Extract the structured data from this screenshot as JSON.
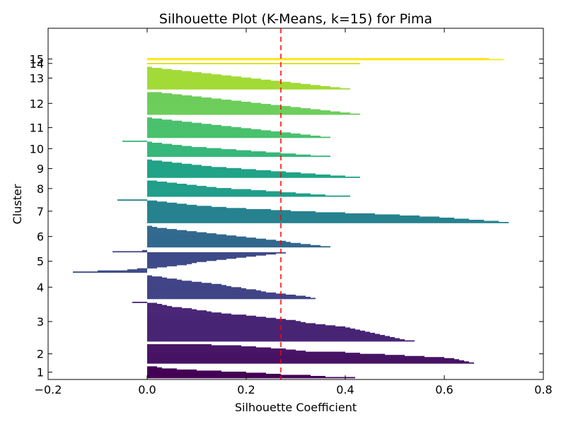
{
  "chart_data": {
    "type": "bar",
    "orientation": "horizontal",
    "title": "Silhouette Plot (K-Means, k=15) for Pima",
    "xlabel": "Silhouette Coefficient",
    "ylabel": "Cluster",
    "xlim": [
      -0.2,
      0.8
    ],
    "xticks": [
      "−0.2",
      "0.0",
      "0.2",
      "0.4",
      "0.6",
      "0.8"
    ],
    "xtick_values": [
      -0.2,
      0.0,
      0.2,
      0.4,
      0.6,
      0.8
    ],
    "average_silhouette": 0.27,
    "reference_line_color": "#ff0000",
    "colormap": "viridis",
    "grid": false,
    "clusters": [
      {
        "label": "1",
        "color": "#440154",
        "values": [
          0.42,
          0.36,
          0.33,
          0.27,
          0.24,
          0.2,
          0.15,
          0.1,
          0.06,
          0.03,
          0.02
        ]
      },
      {
        "label": "2",
        "color": "#471365",
        "values": [
          0.66,
          0.65,
          0.64,
          0.63,
          0.62,
          0.6,
          0.56,
          0.52,
          0.48,
          0.43,
          0.4,
          0.32,
          0.3,
          0.28,
          0.25,
          0.22,
          0.19,
          0.13
        ]
      },
      {
        "label": "3",
        "color": "#482475",
        "values": [
          0.54,
          0.52,
          0.51,
          0.5,
          0.49,
          0.48,
          0.47,
          0.46,
          0.45,
          0.44,
          0.43,
          0.42,
          0.41,
          0.4,
          0.38,
          0.36,
          0.34,
          0.32,
          0.31,
          0.3,
          0.28,
          0.26,
          0.24,
          0.22,
          0.2,
          0.17,
          0.15,
          0.13,
          0.12,
          0.1,
          0.09,
          0.07,
          0.05,
          0.04,
          0.03,
          0.02,
          -0.03
        ]
      },
      {
        "label": "4",
        "color": "#414487",
        "values": [
          0.34,
          0.33,
          0.32,
          0.3,
          0.28,
          0.26,
          0.24,
          0.23,
          0.22,
          0.2,
          0.19,
          0.17,
          0.16,
          0.15,
          0.13,
          0.11,
          0.09,
          0.07,
          0.06,
          0.04,
          0.03,
          0.01
        ]
      },
      {
        "label": "5",
        "color": "#3e4a89",
        "values": [
          -0.15,
          -0.1,
          -0.04,
          -0.02,
          0.02,
          0.04,
          0.06,
          0.08,
          0.09,
          0.1,
          0.12,
          0.14,
          0.16,
          0.18,
          0.2,
          0.22,
          0.24,
          0.26,
          0.28,
          -0.07,
          -0.01
        ]
      },
      {
        "label": "6",
        "color": "#31688e",
        "values": [
          0.37,
          0.35,
          0.33,
          0.31,
          0.29,
          0.28,
          0.26,
          0.24,
          0.22,
          0.2,
          0.18,
          0.16,
          0.14,
          0.12,
          0.1,
          0.08,
          0.06,
          0.04,
          0.02,
          0.01
        ]
      },
      {
        "label": "7",
        "color": "#26828e",
        "values": [
          0.73,
          0.71,
          0.68,
          0.65,
          0.62,
          0.59,
          0.55,
          0.51,
          0.46,
          0.4,
          0.34,
          0.29,
          0.25,
          0.2,
          0.16,
          0.13,
          0.1,
          0.08,
          0.06,
          0.04,
          0.02,
          -0.06
        ]
      },
      {
        "label": "8",
        "color": "#1f9e89",
        "values": [
          0.41,
          0.36,
          0.33,
          0.3,
          0.27,
          0.24,
          0.21,
          0.17,
          0.14,
          0.12,
          0.1,
          0.08,
          0.06,
          0.04,
          0.02
        ]
      },
      {
        "label": "9",
        "color": "#20a386",
        "values": [
          0.43,
          0.4,
          0.37,
          0.34,
          0.31,
          0.28,
          0.25,
          0.22,
          0.19,
          0.16,
          0.13,
          0.11,
          0.09,
          0.07,
          0.05,
          0.03,
          0.01
        ]
      },
      {
        "label": "10",
        "color": "#35b779",
        "values": [
          0.37,
          0.33,
          0.3,
          0.27,
          0.24,
          0.21,
          0.18,
          0.15,
          0.12,
          0.09,
          0.07,
          0.05,
          0.03,
          0.01,
          -0.05
        ]
      },
      {
        "label": "11",
        "color": "#4ac16d",
        "values": [
          0.37,
          0.35,
          0.33,
          0.31,
          0.29,
          0.27,
          0.25,
          0.23,
          0.21,
          0.19,
          0.17,
          0.15,
          0.13,
          0.11,
          0.09,
          0.07,
          0.05,
          0.03,
          0.01
        ]
      },
      {
        "label": "12",
        "color": "#6ccd5a",
        "values": [
          0.43,
          0.41,
          0.39,
          0.37,
          0.35,
          0.33,
          0.31,
          0.29,
          0.27,
          0.25,
          0.23,
          0.21,
          0.19,
          0.17,
          0.15,
          0.13,
          0.11,
          0.09,
          0.07,
          0.05,
          0.03
        ]
      },
      {
        "label": "13",
        "color": "#a2da37",
        "values": [
          0.41,
          0.39,
          0.37,
          0.35,
          0.33,
          0.31,
          0.29,
          0.27,
          0.25,
          0.23,
          0.21,
          0.19,
          0.17,
          0.15,
          0.13,
          0.11,
          0.09,
          0.07,
          0.05,
          0.03,
          0.01
        ]
      },
      {
        "label": "14",
        "color": "#d8e219",
        "values": [
          0.43
        ]
      },
      {
        "label": "15",
        "color": "#fde725",
        "values": [
          0.72,
          0.69
        ]
      }
    ]
  }
}
